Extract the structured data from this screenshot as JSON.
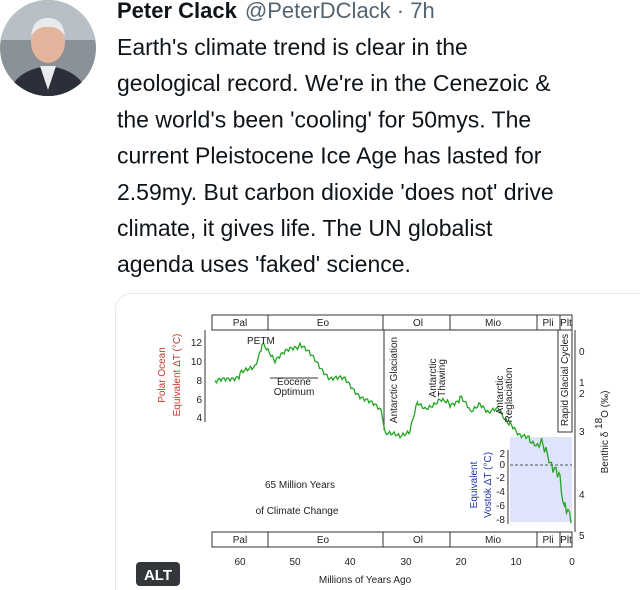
{
  "tweet": {
    "author": "Peter Clack",
    "meta": "@PeterDClack · 7h",
    "text_lines": [
      "Earth's climate trend is clear in the",
      "geological record. We're in the Cenezoic &",
      "the world's been 'cooling' for 50mys. The",
      "current Pleistocene Ice Age has lasted for",
      "2.59my. But carbon dioxide 'does not' drive",
      "climate, it gives life. The UN globalist",
      "agenda uses 'faked' science."
    ]
  },
  "image": {
    "periods": [
      "Pal",
      "Eo",
      "Ol",
      "Mio",
      "Pli",
      "Plt"
    ],
    "left_axis_label": [
      "Polar Ocean",
      "Equivalent ΔT (°C)"
    ],
    "left_ticks": [
      12,
      10,
      8,
      6,
      4
    ],
    "right_axis_label": {
      "prefix": "Benthic δ ",
      "superscript": "18",
      "suffix": "O (‰)"
    },
    "right_ticks": [
      0,
      1,
      2,
      3,
      4,
      5
    ],
    "inner_axis_label": [
      "Equivalent",
      "Vostok ΔT (°C)"
    ],
    "inner_ticks": [
      2,
      0,
      -2,
      -4,
      -6,
      -8
    ],
    "x_ticks": [
      60,
      50,
      40,
      30,
      20,
      10,
      0
    ],
    "x_axis_label": "Millions of Years Ago",
    "annotations": {
      "petm": "PETM",
      "eocene": [
        "Eocene",
        "Optimum"
      ],
      "glaciation": "Antarctic Glaciation",
      "thawing": [
        "Antarctic",
        "Thawing"
      ],
      "reglaciation": [
        "Antarctic",
        "Reglaciation"
      ],
      "rapid": "Rapid Glacial Cycles"
    },
    "title": [
      "65 Million Years",
      "of Climate Change"
    ],
    "alt_badge": "ALT"
  }
}
